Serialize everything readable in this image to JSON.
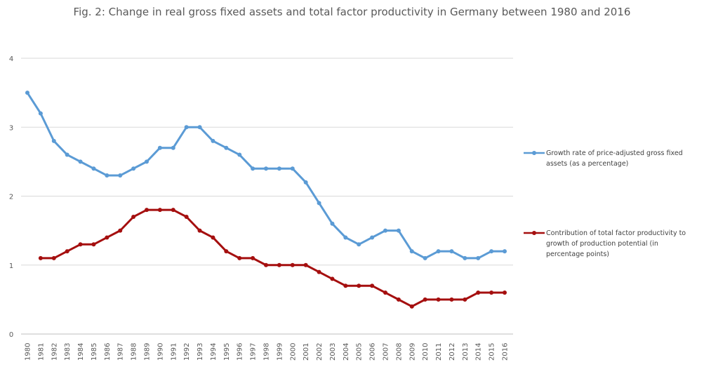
{
  "chart_data": {
    "type": "line",
    "title": "Fig. 2: Change in real gross fixed assets and total factor productivity in Germany between 1980 and 2016",
    "xlabel": "",
    "ylabel": "",
    "ylim": [
      0,
      4
    ],
    "y_ticks": [
      "0",
      "1",
      "2",
      "3",
      "4"
    ],
    "grid": true,
    "legend_position": "right",
    "x": [
      "1980",
      "1981",
      "1982",
      "1983",
      "1984",
      "1985",
      "1986",
      "1987",
      "1988",
      "1989",
      "1990",
      "1991",
      "1992",
      "1993",
      "1994",
      "1995",
      "1996",
      "1997",
      "1998",
      "1999",
      "2000",
      "2001",
      "2002",
      "2003",
      "2004",
      "2005",
      "2006",
      "2007",
      "2008",
      "2009",
      "2010",
      "2011",
      "2012",
      "2013",
      "2014",
      "2015",
      "2016"
    ],
    "series": [
      {
        "name": "Growth rate of price-adjusted gross fixed assets (as a percentage)",
        "legend_lines": [
          "Growth rate of price-adjusted gross fixed",
          "assets (as a percentage)"
        ],
        "color": "#5b9bd5",
        "values": [
          3.5,
          3.2,
          2.8,
          2.6,
          2.5,
          2.4,
          2.3,
          2.3,
          2.4,
          2.5,
          2.7,
          2.7,
          3.0,
          3.0,
          2.8,
          2.7,
          2.6,
          2.4,
          2.4,
          2.4,
          2.4,
          2.2,
          1.9,
          1.6,
          1.4,
          1.3,
          1.4,
          1.5,
          1.5,
          1.2,
          1.1,
          1.2,
          1.2,
          1.1,
          1.1,
          1.2,
          1.2
        ]
      },
      {
        "name": "Contribution of total factor productivity to growth of production potential (in percentage points)",
        "legend_lines": [
          "Contribution of total factor productivity to",
          "growth of production potential (in",
          "percentage points)"
        ],
        "color": "#a50f0f",
        "values": [
          null,
          1.1,
          1.1,
          1.2,
          1.3,
          1.3,
          1.4,
          1.5,
          1.7,
          1.8,
          1.8,
          1.8,
          1.7,
          1.5,
          1.4,
          1.2,
          1.1,
          1.1,
          1.0,
          1.0,
          1.0,
          1.0,
          0.9,
          0.8,
          0.7,
          0.7,
          0.7,
          0.6,
          0.5,
          0.4,
          0.5,
          0.5,
          0.5,
          0.5,
          0.6,
          0.6,
          0.6
        ]
      }
    ]
  }
}
